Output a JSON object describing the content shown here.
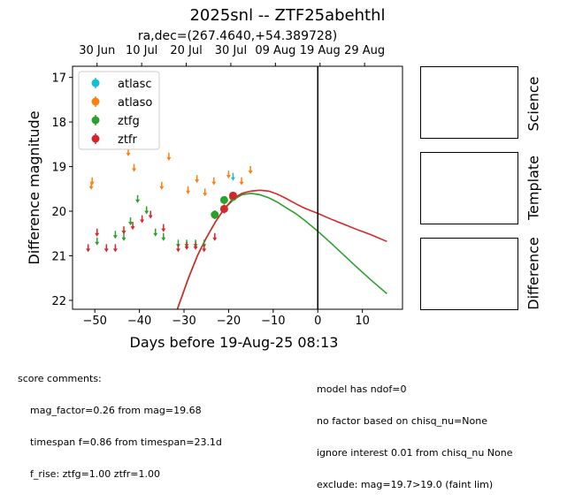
{
  "title": "2025snl -- ZTF25abehthl",
  "subtitle": "ra,dec=(267.4640,+54.389728)",
  "chart_data": {
    "type": "scatter",
    "xlabel": "Days before 19-Aug-25 08:13",
    "ylabel": "Difference magnitude",
    "xlim": [
      -55,
      19
    ],
    "ylim": [
      22.2,
      16.75
    ],
    "xticks": [
      -50,
      -40,
      -30,
      -20,
      -10,
      0,
      10
    ],
    "yticks": [
      17,
      18,
      19,
      20,
      21,
      22
    ],
    "top_ticks": [
      {
        "x": -49.5,
        "label": "30 Jun"
      },
      {
        "x": -39.5,
        "label": "10 Jul"
      },
      {
        "x": -29.5,
        "label": "20 Jul"
      },
      {
        "x": -19.5,
        "label": "30 Jul"
      },
      {
        "x": -9.5,
        "label": "09 Aug"
      },
      {
        "x": 0.5,
        "label": "19 Aug"
      },
      {
        "x": 10.5,
        "label": "29 Aug"
      }
    ],
    "reference_line_x": 0,
    "legend_position": "top-left",
    "series": [
      {
        "name": "atlasc",
        "color": "#17becf",
        "upper_limits": [
          {
            "x": -19.0,
            "y": 19.2
          }
        ],
        "detections": []
      },
      {
        "name": "atlaso",
        "color": "#ff7f0e",
        "upper_limits": [
          {
            "x": -50.8,
            "y": 19.4
          },
          {
            "x": -50.6,
            "y": 19.3
          },
          {
            "x": -42.5,
            "y": 18.65
          },
          {
            "x": -41.2,
            "y": 19.0
          },
          {
            "x": -35.0,
            "y": 19.4
          },
          {
            "x": -33.4,
            "y": 18.75
          },
          {
            "x": -29.1,
            "y": 19.5
          },
          {
            "x": -27.1,
            "y": 19.25
          },
          {
            "x": -25.3,
            "y": 19.55
          },
          {
            "x": -23.3,
            "y": 19.3
          },
          {
            "x": -20.0,
            "y": 19.15
          },
          {
            "x": -17.1,
            "y": 19.3
          },
          {
            "x": -15.1,
            "y": 19.05
          }
        ],
        "detections": []
      },
      {
        "name": "ztfg",
        "color": "#2ca02c",
        "upper_limits": [
          {
            "x": -49.5,
            "y": 20.65
          },
          {
            "x": -45.4,
            "y": 20.5
          },
          {
            "x": -43.5,
            "y": 20.55
          },
          {
            "x": -42.0,
            "y": 20.2
          },
          {
            "x": -40.4,
            "y": 19.7
          },
          {
            "x": -38.4,
            "y": 19.95
          },
          {
            "x": -36.4,
            "y": 20.45
          },
          {
            "x": -34.6,
            "y": 20.55
          },
          {
            "x": -31.3,
            "y": 20.7
          },
          {
            "x": -29.4,
            "y": 20.7
          },
          {
            "x": -27.4,
            "y": 20.7
          },
          {
            "x": -25.5,
            "y": 20.7
          }
        ],
        "detections": [
          {
            "x": -23.1,
            "y": 20.08,
            "err": 0.1
          },
          {
            "x": -21.0,
            "y": 19.75,
            "err": 0.08
          },
          {
            "x": -19.0,
            "y": 19.68,
            "err": 0.07
          }
        ]
      },
      {
        "name": "ztfr",
        "color": "#d62728",
        "upper_limits": [
          {
            "x": -51.5,
            "y": 20.8
          },
          {
            "x": -49.5,
            "y": 20.45
          },
          {
            "x": -47.4,
            "y": 20.8
          },
          {
            "x": -45.4,
            "y": 20.8
          },
          {
            "x": -43.5,
            "y": 20.4
          },
          {
            "x": -41.5,
            "y": 20.3
          },
          {
            "x": -39.4,
            "y": 20.15
          },
          {
            "x": -37.5,
            "y": 20.05
          },
          {
            "x": -34.6,
            "y": 20.35
          },
          {
            "x": -31.3,
            "y": 20.8
          },
          {
            "x": -29.4,
            "y": 20.75
          },
          {
            "x": -27.4,
            "y": 20.75
          },
          {
            "x": -25.5,
            "y": 20.8
          },
          {
            "x": -23.1,
            "y": 20.55
          }
        ],
        "detections": [
          {
            "x": -21.0,
            "y": 19.95,
            "err": 0.1
          },
          {
            "x": -19.0,
            "y": 19.65,
            "err": 0.07
          }
        ]
      }
    ],
    "model_curves": [
      {
        "band": "ztfg",
        "color": "#2ca02c",
        "x": [
          -31.5,
          -29,
          -27,
          -25,
          -23,
          -21,
          -19,
          -17,
          -15,
          -13,
          -11,
          -9,
          -7,
          -5,
          -3,
          0,
          3,
          6,
          9,
          12,
          15.5
        ],
        "y": [
          22.2,
          21.5,
          21.0,
          20.6,
          20.25,
          19.95,
          19.75,
          19.63,
          19.6,
          19.63,
          19.7,
          19.8,
          19.93,
          20.05,
          20.2,
          20.45,
          20.72,
          21.0,
          21.28,
          21.55,
          21.85
        ]
      },
      {
        "band": "ztfr",
        "color": "#d62728",
        "x": [
          -31.5,
          -29,
          -27,
          -25,
          -23,
          -21,
          -19,
          -17,
          -15,
          -13,
          -11,
          -9,
          -7,
          -5,
          -3,
          0,
          3,
          6,
          9,
          12,
          15.5
        ],
        "y": [
          22.2,
          21.5,
          21.0,
          20.6,
          20.25,
          19.95,
          19.72,
          19.6,
          19.55,
          19.53,
          19.55,
          19.62,
          19.72,
          19.83,
          19.93,
          20.05,
          20.18,
          20.3,
          20.42,
          20.53,
          20.68
        ]
      }
    ]
  },
  "stamps": [
    {
      "label": "Science"
    },
    {
      "label": "Template"
    },
    {
      "label": "Difference"
    }
  ],
  "comments_left": {
    "heading": "score comments:",
    "lines": [
      "mag_factor=0.26 from mag=19.68",
      "timespan f=0.86 from timespan=23.1d",
      "f_rise: ztfg=1.00 ztfr=1.00"
    ]
  },
  "comments_right": {
    "lines": [
      "model has ndof=0",
      "no factor based on chisq_nu=None",
      "ignore interest 0.01 from chisq_nu None",
      "exclude: mag=19.7>19.0 (faint lim)"
    ]
  }
}
